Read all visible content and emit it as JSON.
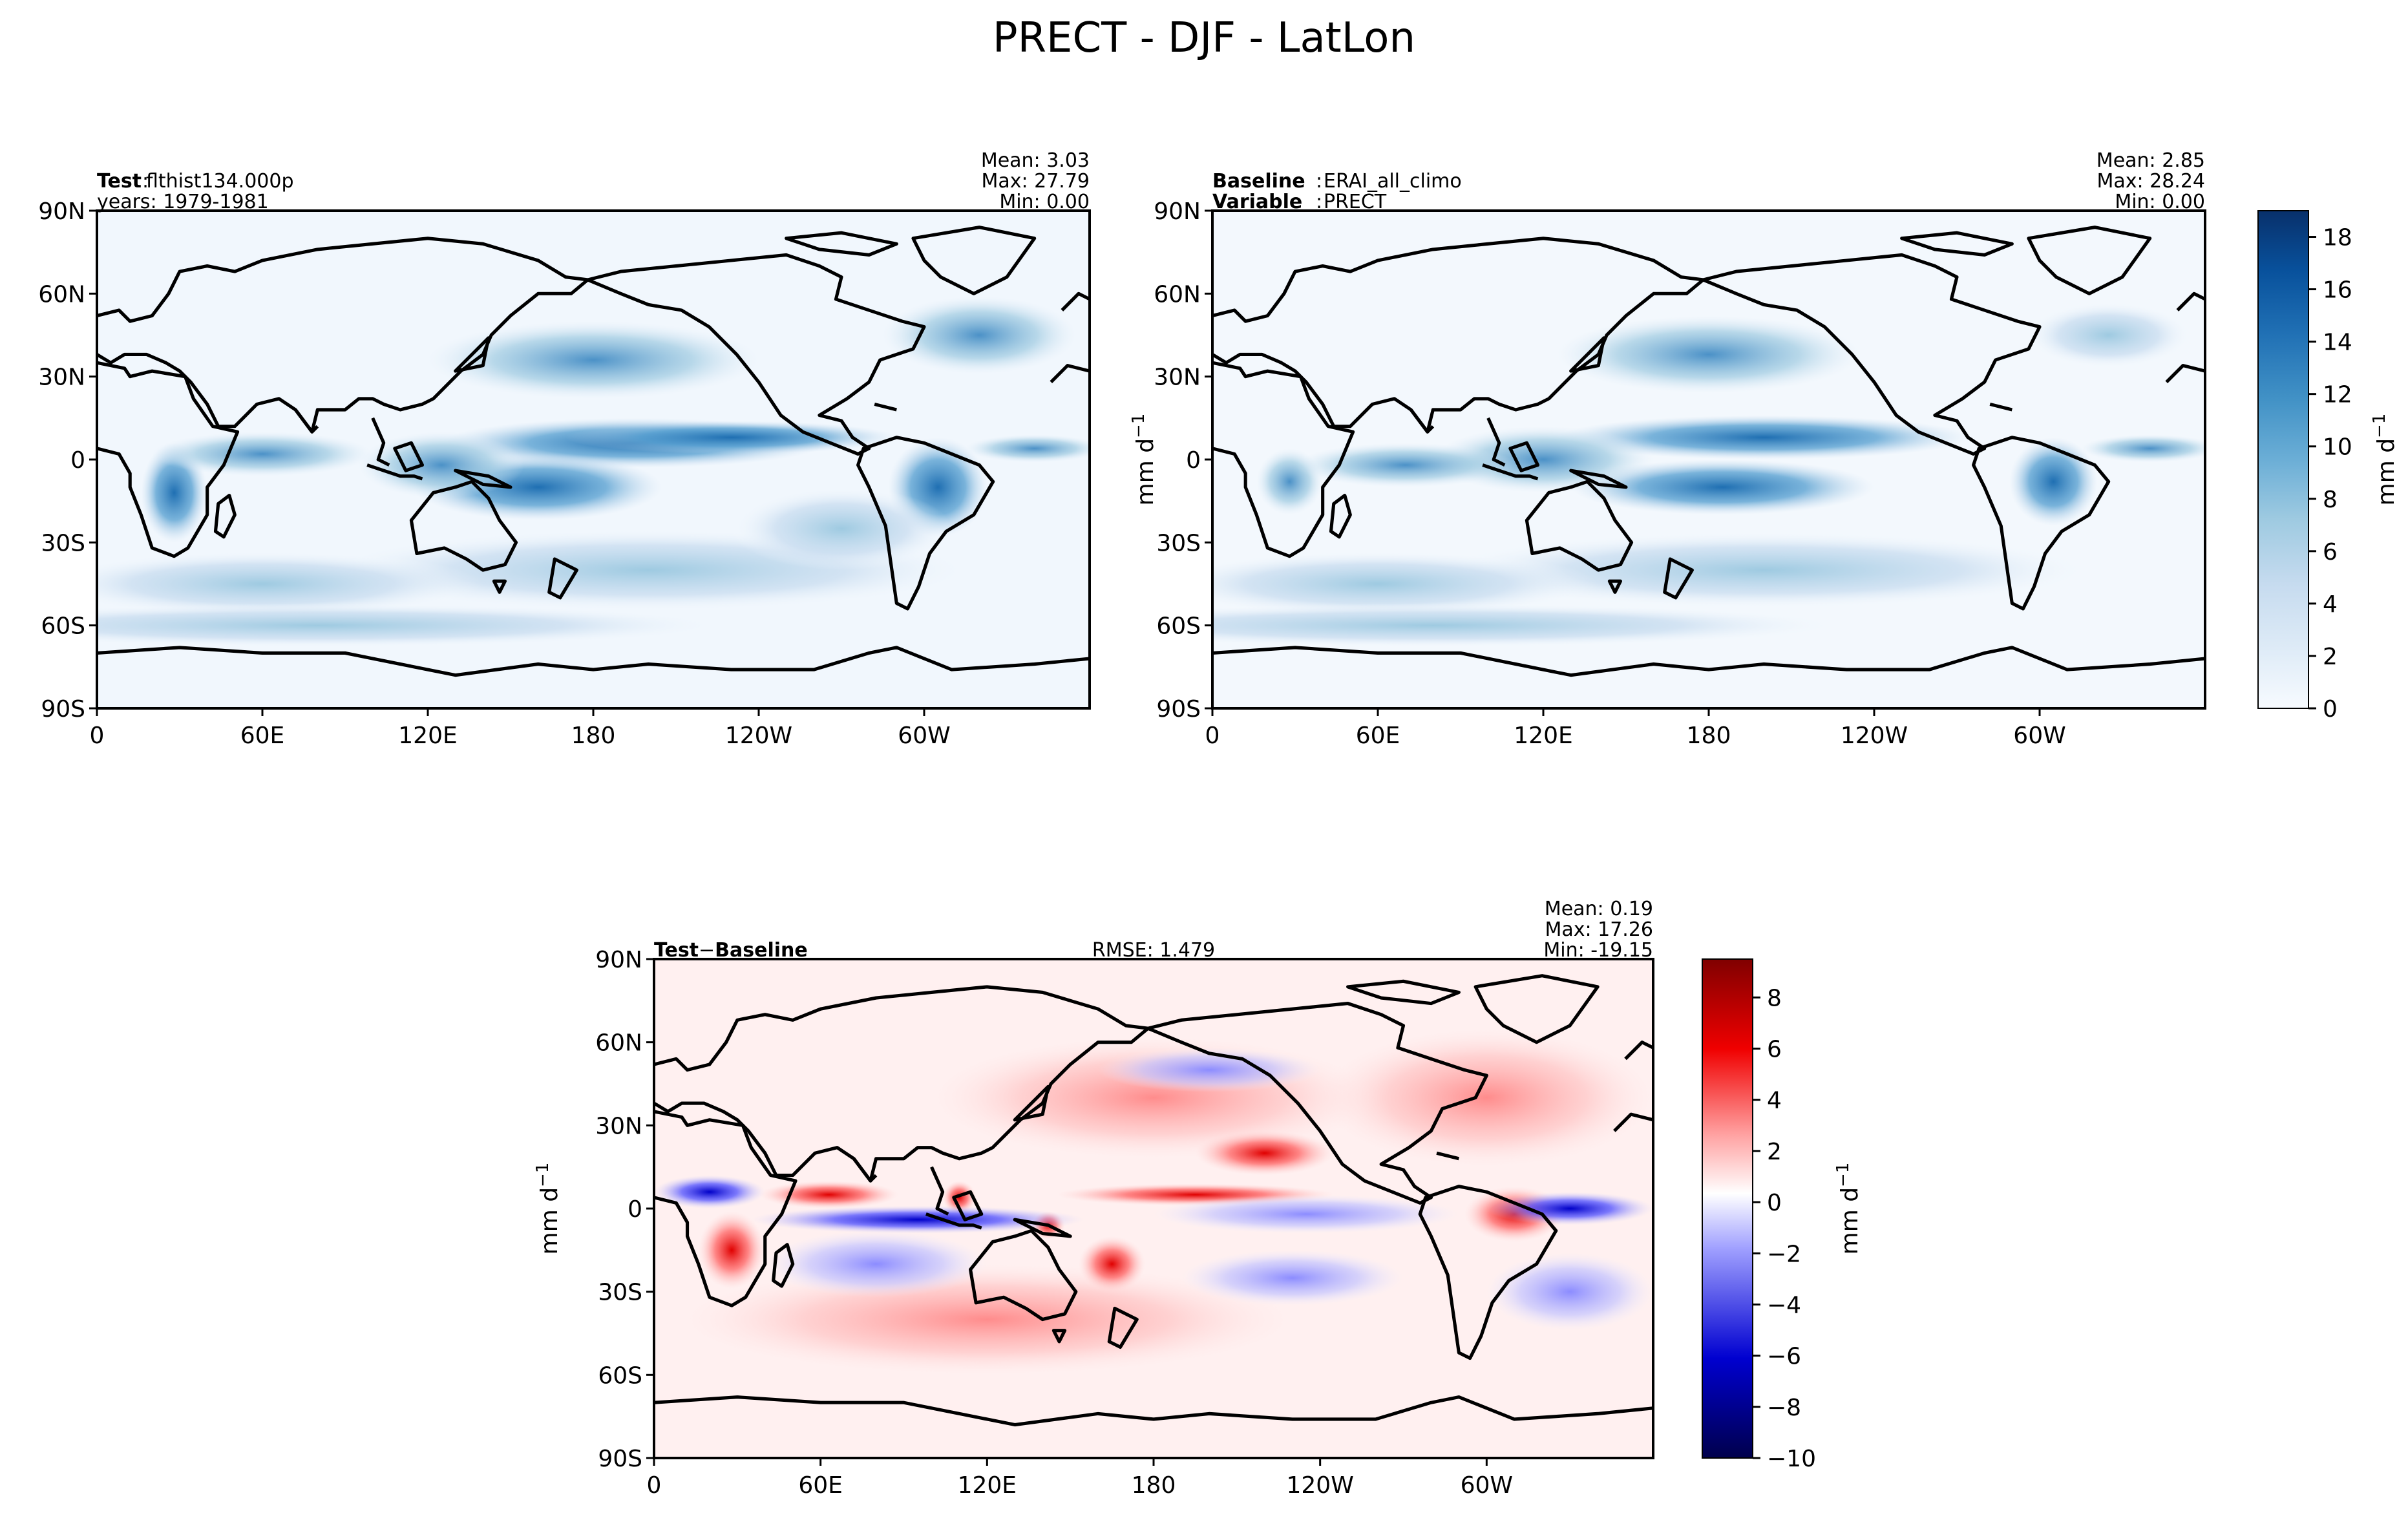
{
  "figure": {
    "title": "PRECT - DJF - LatLon"
  },
  "panels": {
    "test": {
      "name_bold": "Test",
      "name_value": "flthist134.000p",
      "line2": "years: 1979-1981",
      "mean": "Mean:  3.03",
      "max": "Max: 27.79",
      "min": "Min:  0.00"
    },
    "baseline": {
      "name_bold": "Baseline",
      "name_value": "ERAI_all_climo",
      "var_bold": "Variable",
      "var_value": "PRECT",
      "mean": "Mean:  2.85",
      "max": "Max: 28.24",
      "min": "Min:  0.00",
      "ylabel": "mm d"
    },
    "diff": {
      "name_bold_a": "Test",
      "name_op": "−",
      "name_bold_b": "Baseline",
      "rmse": "RMSE: 1.479",
      "mean": "Mean:  0.19",
      "max": "Max: 17.26",
      "min": "Min: -19.15",
      "ylabel": "mm d"
    }
  },
  "colorbars": {
    "precip": {
      "label": "mm d",
      "label_sup": "−1",
      "ticks": [
        "0",
        "2",
        "4",
        "6",
        "8",
        "10",
        "12",
        "14",
        "16",
        "18"
      ],
      "colors": {
        "low": "#f7fbff",
        "high": "#08306b"
      }
    },
    "diff": {
      "label": "mm d",
      "label_sup": "−1",
      "ticks": [
        "−10",
        "−8",
        "−6",
        "−4",
        "−2",
        "0",
        "2",
        "4",
        "6",
        "8"
      ],
      "colors": {
        "low": "#00004c",
        "mid": "#ffffff",
        "high": "#800000"
      }
    }
  },
  "chart_data": [
    {
      "type": "heatmap",
      "title": "PRECT - DJF - LatLon",
      "panel": "Test: flthist134.000p, years: 1979-1981",
      "x_ticks": [
        "0",
        "60E",
        "120E",
        "180",
        "120W",
        "60W"
      ],
      "y_ticks": [
        "90N",
        "60N",
        "30N",
        "0",
        "30S",
        "60S",
        "90S"
      ],
      "xlim": [
        0,
        360
      ],
      "ylim": [
        -90,
        90
      ],
      "units": "mm d−1",
      "stats": {
        "mean": 3.03,
        "max": 27.79,
        "min": 0.0
      },
      "features": [
        {
          "lon": [
            130,
            260
          ],
          "lat": [
            2,
            9
          ],
          "value": 12
        },
        {
          "lon": [
            140,
            200
          ],
          "lat": [
            -14,
            -6
          ],
          "value": 9
        },
        {
          "lon": [
            290,
            320
          ],
          "lat": [
            -20,
            -3
          ],
          "value": 10
        },
        {
          "lon": [
            20,
            35
          ],
          "lat": [
            -22,
            -5
          ],
          "value": 8
        },
        {
          "lon": [
            140,
            230
          ],
          "lat": [
            30,
            42
          ],
          "value": 5
        },
        {
          "lon": [
            285,
            340
          ],
          "lat": [
            35,
            55
          ],
          "value": 4
        }
      ]
    },
    {
      "type": "heatmap",
      "panel": "Baseline: ERAI_all_climo, Variable: PRECT",
      "x_ticks": [
        "0",
        "60E",
        "120E",
        "180",
        "120W",
        "60W"
      ],
      "y_ticks": [
        "90N",
        "60N",
        "30N",
        "0",
        "30S",
        "60S",
        "90S"
      ],
      "xlim": [
        0,
        360
      ],
      "ylim": [
        -90,
        90
      ],
      "units": "mm d−1",
      "stats": {
        "mean": 2.85,
        "max": 28.24,
        "min": 0.0
      },
      "colorbar_ticks": [
        0,
        2,
        4,
        6,
        8,
        10,
        12,
        14,
        16,
        18
      ],
      "features": [
        {
          "lon": [
            130,
            260
          ],
          "lat": [
            3,
            10
          ],
          "value": 9
        },
        {
          "lon": [
            150,
            230
          ],
          "lat": [
            -18,
            -8
          ],
          "value": 8
        },
        {
          "lon": [
            295,
            320
          ],
          "lat": [
            -15,
            -3
          ],
          "value": 9
        },
        {
          "lon": [
            20,
            35
          ],
          "lat": [
            -15,
            -5
          ],
          "value": 7
        },
        {
          "lon": [
            140,
            220
          ],
          "lat": [
            30,
            42
          ],
          "value": 5
        }
      ]
    },
    {
      "type": "heatmap",
      "panel": "Test − Baseline",
      "x_ticks": [
        "0",
        "60E",
        "120E",
        "180",
        "120W",
        "60W"
      ],
      "y_ticks": [
        "90N",
        "60N",
        "30N",
        "0",
        "30S",
        "60S",
        "90S"
      ],
      "xlim": [
        0,
        360
      ],
      "ylim": [
        -90,
        90
      ],
      "units": "mm d−1",
      "stats": {
        "mean": 0.19,
        "max": 17.26,
        "min": -19.15,
        "rmse": 1.479
      },
      "colorbar_ticks": [
        -10,
        -8,
        -6,
        -4,
        -2,
        0,
        2,
        4,
        6,
        8
      ],
      "features": [
        {
          "lon": [
            50,
            140
          ],
          "lat": [
            -6,
            -2
          ],
          "value": -6
        },
        {
          "lon": [
            40,
            90
          ],
          "lat": [
            -1,
            4
          ],
          "value": 5
        },
        {
          "lon": [
            15,
            35
          ],
          "lat": [
            -25,
            -15
          ],
          "value": 5
        },
        {
          "lon": [
            200,
            240
          ],
          "lat": [
            20,
            30
          ],
          "value": 5
        },
        {
          "lon": [
            160,
            260
          ],
          "lat": [
            6,
            10
          ],
          "value": 5
        },
        {
          "lon": [
            140,
            230
          ],
          "lat": [
            -30,
            -12
          ],
          "value": -3
        },
        {
          "lon": [
            290,
            330
          ],
          "lat": [
            -20,
            -5
          ],
          "value": 5
        }
      ]
    }
  ]
}
